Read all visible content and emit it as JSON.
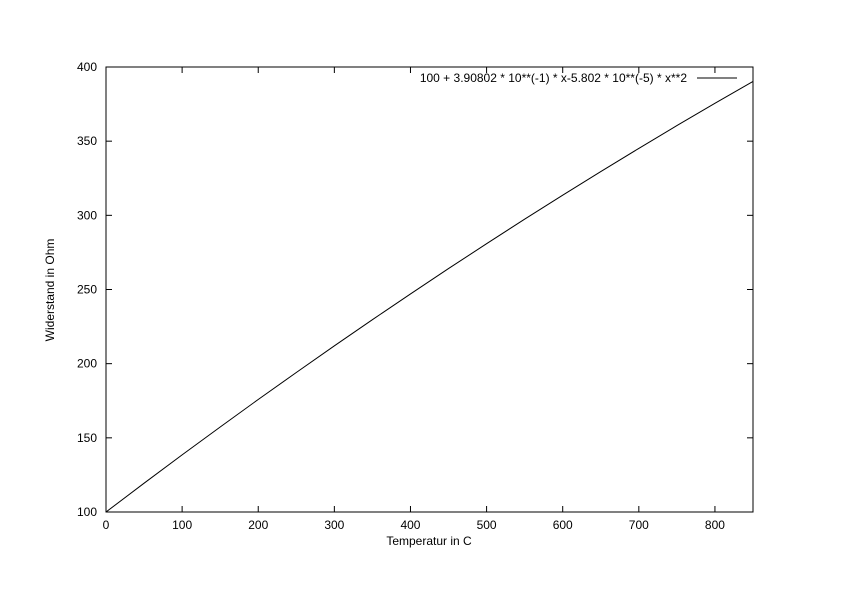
{
  "chart_data": {
    "type": "line",
    "title": "",
    "xlabel": "Temperatur in  C",
    "ylabel": "Widerstand in Ohm",
    "xlim": [
      0,
      850
    ],
    "ylim": [
      100,
      400
    ],
    "xticks": [
      0,
      100,
      200,
      300,
      400,
      500,
      600,
      700,
      800
    ],
    "yticks": [
      100,
      150,
      200,
      250,
      300,
      350,
      400
    ],
    "grid": false,
    "legend_position": "top-right",
    "line_color": "#000000",
    "series": [
      {
        "name": "100 + 3.90802 * 10**(-1) * x-5.802 * 10**(-5) * x**2",
        "x": [
          0,
          50,
          100,
          150,
          200,
          250,
          300,
          350,
          400,
          450,
          500,
          550,
          600,
          650,
          700,
          750,
          800,
          850
        ],
        "y": [
          100,
          119.395,
          138.5,
          157.315,
          175.84,
          194.074,
          212.019,
          229.673,
          247.038,
          264.112,
          280.896,
          297.39,
          313.594,
          329.508,
          345.131,
          360.465,
          375.509,
          390.262
        ]
      }
    ]
  }
}
